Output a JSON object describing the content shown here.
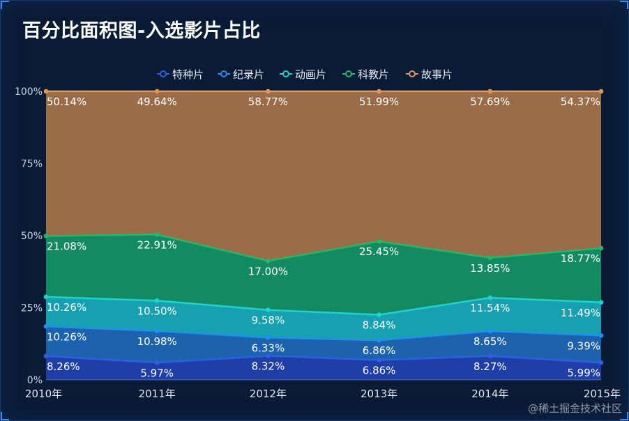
{
  "title": "百分比面积图-入选影片占比",
  "watermark": "@稀土掘金技术社区",
  "chart_data": {
    "type": "area",
    "stacked": "percent",
    "categories": [
      "2010年",
      "2011年",
      "2012年",
      "2013年",
      "2014年",
      "2015年"
    ],
    "ylim": [
      0,
      100
    ],
    "yticks": [
      "0%",
      "25%",
      "50%",
      "75%",
      "100%"
    ],
    "legend_position": "top-center",
    "series": [
      {
        "name": "特种片",
        "color": "#2f5ee6",
        "values": [
          8.26,
          5.97,
          8.32,
          6.86,
          8.27,
          5.99
        ],
        "labels": [
          "8.26%",
          "5.97%",
          "8.32%",
          "6.86%",
          "8.27%",
          "5.99%"
        ]
      },
      {
        "name": "纪录片",
        "color": "#1f8ff0",
        "values": [
          10.26,
          10.98,
          6.33,
          6.86,
          8.65,
          9.39
        ],
        "labels": [
          "10.26%",
          "10.98%",
          "6.33%",
          "6.86%",
          "8.65%",
          "9.39%"
        ]
      },
      {
        "name": "动画片",
        "color": "#1fd3d0",
        "values": [
          10.26,
          10.5,
          9.58,
          8.84,
          11.54,
          11.49
        ],
        "labels": [
          "10.26%",
          "10.50%",
          "9.58%",
          "8.84%",
          "11.54%",
          "11.49%"
        ]
      },
      {
        "name": "科教片",
        "color": "#22b86c",
        "values": [
          21.08,
          22.91,
          17.0,
          25.45,
          13.85,
          18.77
        ],
        "labels": [
          "21.08%",
          "22.91%",
          "17.00%",
          "25.45%",
          "13.85%",
          "18.77%"
        ]
      },
      {
        "name": "故事片",
        "color": "#e0985a",
        "values": [
          50.14,
          49.64,
          58.77,
          51.99,
          57.69,
          54.37
        ],
        "labels": [
          "50.14%",
          "49.64%",
          "58.77%",
          "51.99%",
          "57.69%",
          "54.37%"
        ]
      }
    ],
    "fill_colors": [
      "#1e3fa8",
      "#1d62ac",
      "#17a1b0",
      "#138a62",
      "#9a6c47"
    ]
  }
}
